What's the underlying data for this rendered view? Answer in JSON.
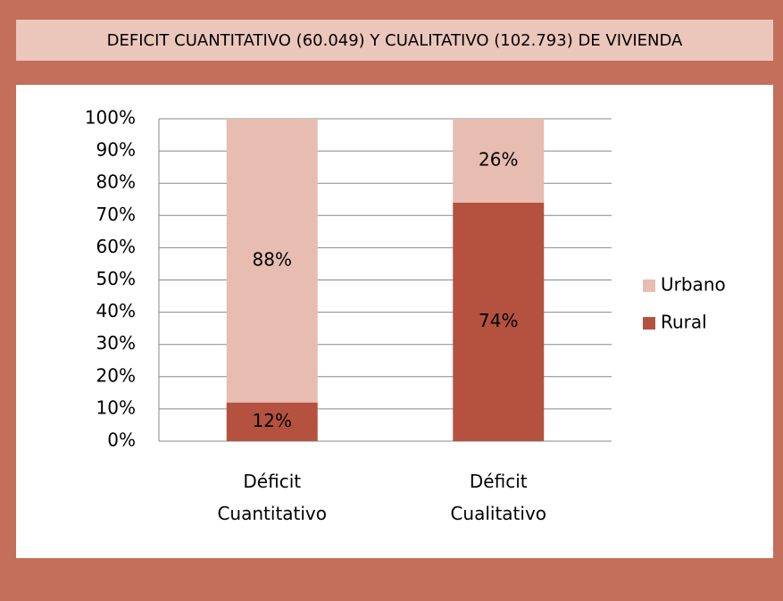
{
  "chart_data": {
    "type": "stacked_bar",
    "title": "DEFICIT CUANTITATIVO (60.049) Y CUALITATIVO (102.793)  DE VIVIENDA",
    "categories": [
      "Déficit Cuantitativo",
      "Déficit Cualitativo"
    ],
    "series": [
      {
        "name": "Rural",
        "color": "#b5523f",
        "values": [
          12,
          74
        ],
        "value_labels": [
          "12%",
          "74%"
        ]
      },
      {
        "name": "Urbano",
        "color": "#e7bdb1",
        "values": [
          88,
          26
        ],
        "value_labels": [
          "88%",
          "26%"
        ]
      }
    ],
    "ylim": [
      0,
      100
    ],
    "yticks": [
      {
        "value": 0,
        "label": "0%"
      },
      {
        "value": 10,
        "label": "10%"
      },
      {
        "value": 20,
        "label": "20%"
      },
      {
        "value": 30,
        "label": "30%"
      },
      {
        "value": 40,
        "label": "40%"
      },
      {
        "value": 50,
        "label": "50%"
      },
      {
        "value": 60,
        "label": "60%"
      },
      {
        "value": 70,
        "label": "70%"
      },
      {
        "value": 80,
        "label": "80%"
      },
      {
        "value": 90,
        "label": "90%"
      },
      {
        "value": 100,
        "label": "100%"
      }
    ],
    "grid": true,
    "legend": "right"
  }
}
